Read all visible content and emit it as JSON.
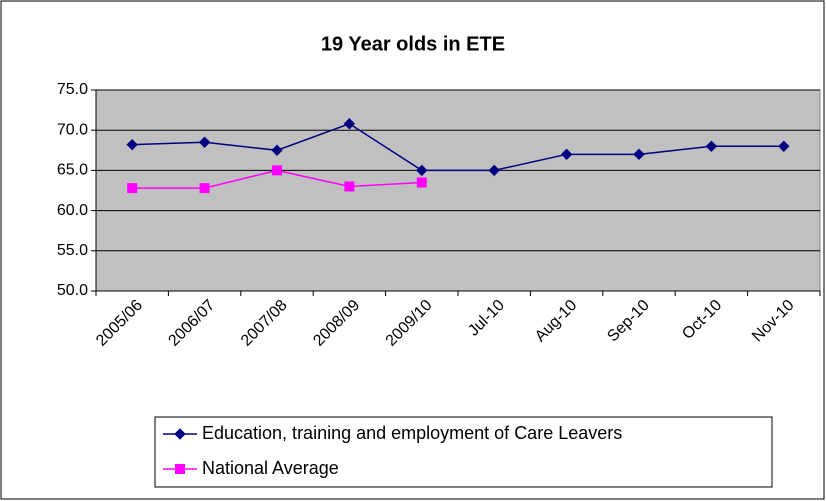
{
  "chart_data": {
    "type": "line",
    "title": "19 Year olds in ETE",
    "categories": [
      "2005/06",
      "2006/07",
      "2007/08",
      "2008/09",
      "2009/10",
      "Jul-10",
      "Aug-10",
      "Sep-10",
      "Oct-10",
      "Nov-10"
    ],
    "series": [
      {
        "name": "Education, training and employment of Care Leavers",
        "color": "#000080",
        "marker": "diamond",
        "values": [
          68.2,
          68.5,
          67.5,
          70.8,
          65.0,
          65.0,
          67.0,
          67.0,
          68.0,
          68.0
        ]
      },
      {
        "name": "National Average",
        "color": "#ff00ff",
        "marker": "square",
        "values": [
          62.8,
          62.8,
          65.0,
          63.0,
          63.5,
          null,
          null,
          null,
          null,
          null
        ]
      }
    ],
    "ylim": [
      50,
      75
    ],
    "yticks": [
      {
        "value": 50,
        "label": "50.0"
      },
      {
        "value": 55,
        "label": "55.0"
      },
      {
        "value": 60,
        "label": "60.0"
      },
      {
        "value": 65,
        "label": "65.0"
      },
      {
        "value": 70,
        "label": "70.0"
      },
      {
        "value": 75,
        "label": "75.0"
      }
    ],
    "grid": true,
    "legend": "bottom"
  }
}
